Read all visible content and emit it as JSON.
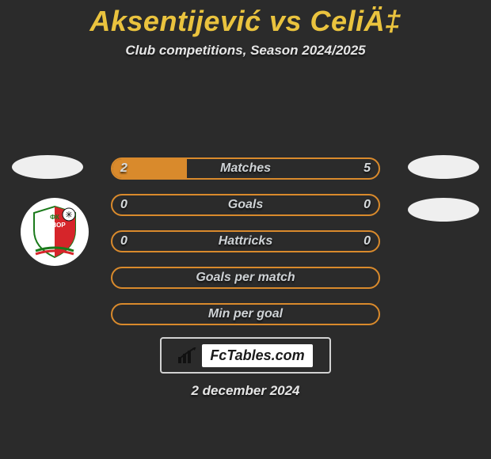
{
  "header": {
    "title": "Aksentijević vs CeliÄ‡",
    "subtitle": "Club competitions, Season 2024/2025",
    "title_color": "#eac33e",
    "subtitle_color": "#e6e6e6"
  },
  "theme": {
    "background": "#2b2b2b",
    "bar_border_color": "#d98a2c",
    "bar_fill_color": "#d98a2c",
    "badge_color": "#efefef",
    "brandbox_border": "#d2d2d2"
  },
  "badges": {
    "left_top": "oval",
    "left_logo": "javor-ivanjica-shield",
    "right_top": "oval",
    "right_2": "oval"
  },
  "bars": [
    {
      "label": "Matches",
      "left": "2",
      "right": "5",
      "fill_left_pct": 28,
      "fill_right_pct": 0
    },
    {
      "label": "Goals",
      "left": "0",
      "right": "0",
      "fill_left_pct": 0,
      "fill_right_pct": 0
    },
    {
      "label": "Hattricks",
      "left": "0",
      "right": "0",
      "fill_left_pct": 0,
      "fill_right_pct": 0
    },
    {
      "label": "Goals per match",
      "left": "",
      "right": "",
      "fill_left_pct": 0,
      "fill_right_pct": 0
    },
    {
      "label": "Min per goal",
      "left": "",
      "right": "",
      "fill_left_pct": 0,
      "fill_right_pct": 0
    }
  ],
  "brand": {
    "text": "FcTables.com"
  },
  "date": {
    "text": "2 december 2024"
  }
}
